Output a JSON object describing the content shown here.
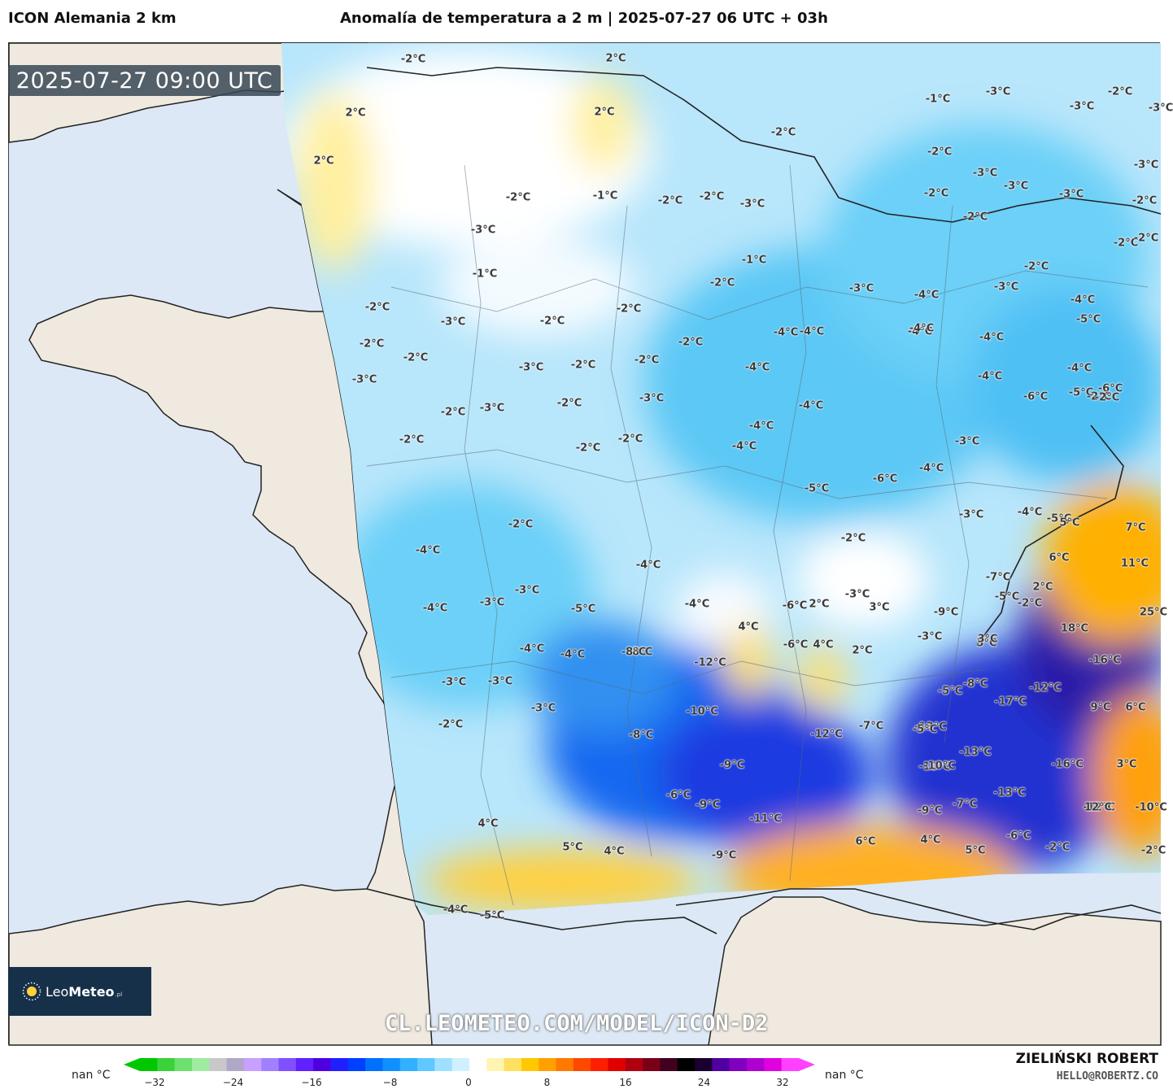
{
  "header": {
    "model": "ICON Alemania 2 km",
    "title": "Anomalía de temperatura a 2 m | 2025-07-27 06 UTC + 03h"
  },
  "map": {
    "timestamp": "2025-07-27 09:00 UTC",
    "watermark": "CL.LEOMETEO.COM/MODEL/ICON-D2",
    "region": "France",
    "labels": [
      "-2°C",
      "2°C",
      "2°C",
      "2°C",
      "-1°C",
      "-3°C",
      "-2°C",
      "-3°C",
      "-3°C",
      "-2°C",
      "-2°C",
      "-3°C",
      "2°C",
      "-2°C",
      "-1°C",
      "-2°C",
      "-2°C",
      "-3°C",
      "-2°C",
      "-3°C",
      "-3°C",
      "-2°C",
      "-3°C",
      "-2°C",
      "-2°C",
      "-3°C",
      "-1°C",
      "-2°C",
      "-3°C",
      "-1°C",
      "-2°C",
      "-2°C",
      "-4°C",
      "-3°C",
      "-2°C",
      "-5°C",
      "-2°C",
      "-3°C",
      "-2°C",
      "-2°C",
      "-4°C",
      "-4°C",
      "-4°C",
      "-2°C",
      "-2°C",
      "-2°C",
      "-4°C",
      "-4°C",
      "-4°C",
      "-4°C",
      "-4°C",
      "-5°C",
      "-6°C",
      "-2°C",
      "-3°C",
      "-2°C",
      "-3°C",
      "-4°C",
      "-4°C",
      "-3°C",
      "-3°C",
      "-2°C",
      "-2°C",
      "-2°C",
      "-2°C",
      "-4°C",
      "-6°C",
      "-5°C",
      "-6°C",
      "-4°C",
      "-4°C",
      "-2°C",
      "-3°C",
      "-2°C",
      "-4°C",
      "-4°C",
      "-3°C",
      "-5°C",
      "5°C",
      "7°C",
      "-2°C",
      "-4°C",
      "-4°C",
      "-3°C",
      "-2°C",
      "-7°C",
      "6°C",
      "11°C",
      "2°C",
      "-5°C",
      "-4°C",
      "-3°C",
      "4°C",
      "-6°C",
      "2°C",
      "-3°C",
      "3°C",
      "-2°C",
      "-5°C",
      "3°C",
      "-8°C",
      "25°C",
      "-4°C",
      "-4°C",
      "-8°C",
      "-6°C",
      "4°C",
      "2°C",
      "-3°C",
      "3°C",
      "-9°C",
      "18°C",
      "-3°C",
      "-3°C",
      "-12°C",
      "-16°C",
      "-8°C",
      "-5°C",
      "-17°C",
      "-12°C",
      "-10°C",
      "-3°C",
      "-2°C",
      "-10°C",
      "-7°C",
      "-13°C",
      "9°C",
      "6°C",
      "-8°C",
      "-12°C",
      "-13°C",
      "-5°C",
      "-9°C",
      "-10°C",
      "-16°C",
      "3°C",
      "-12°C",
      "-6°C",
      "-9°C",
      "-13°C",
      "-9°C",
      "-7°C",
      "12°C",
      "-10°C",
      "-11°C",
      "4°C",
      "6°C",
      "4°C",
      "-6°C",
      "5°C",
      "4°C",
      "-9°C",
      "-2°C",
      "5°C",
      "-2°C",
      "-4°C",
      "-5°C"
    ]
  },
  "legend": {
    "left_label": "nan °C",
    "right_label": "nan °C",
    "ticks": [
      "−32",
      "−24",
      "−16",
      "−8",
      "0",
      "8",
      "16",
      "24",
      "32"
    ],
    "tick_values": [
      -32,
      -24,
      -16,
      -8,
      0,
      8,
      16,
      24,
      32
    ],
    "colors": [
      "#00c800",
      "#3ad23a",
      "#6ee06e",
      "#a0eba0",
      "#c8c8c8",
      "#b0a8c8",
      "#c8a0ff",
      "#a080ff",
      "#8050ff",
      "#6020ff",
      "#5000e0",
      "#2020ff",
      "#0040ff",
      "#0070ff",
      "#1090ff",
      "#30b0ff",
      "#60c8ff",
      "#a0e0ff",
      "#d0f0ff",
      "#ffffff",
      "#fff4b0",
      "#ffe060",
      "#ffc800",
      "#ffa000",
      "#ff7800",
      "#ff4800",
      "#ff1e00",
      "#e00000",
      "#b00010",
      "#7a0018",
      "#400020",
      "#000000",
      "#1a0030",
      "#5000a0",
      "#8000c0",
      "#b000d0",
      "#e000e0",
      "#ff40ff"
    ]
  },
  "logo": {
    "brand_light": "Leo",
    "brand_bold": "Meteo",
    "suffix": ".pl"
  },
  "credits": {
    "name": "ZIELIŃSKI ROBERT",
    "email": "HELLO@ROBERTZ.CO"
  },
  "colors": {
    "sea": "#dce8f5",
    "land_outside": "#efe9df",
    "cold_light": "#d0f0ff",
    "cold_mid": "#40b8f0",
    "cold_deep": "#1a3ae0",
    "warm_light": "#fff0a0",
    "warm_mid": "#ffc820",
    "warm_deep": "#ff9a00",
    "logo_bg": "#16304a"
  }
}
